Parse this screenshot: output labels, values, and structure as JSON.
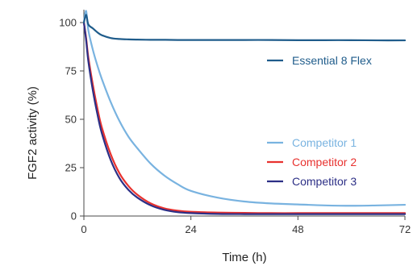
{
  "chart_data": {
    "type": "line",
    "title": "",
    "xlabel": "Time (h)",
    "ylabel": "FGF2 activity (%)",
    "xlim": [
      0,
      72
    ],
    "ylim": [
      0,
      105
    ],
    "x_ticks": [
      "0",
      "24",
      "48",
      "72"
    ],
    "y_ticks": [
      "0",
      "25",
      "50",
      "75",
      "100"
    ],
    "x": [
      0,
      0.5,
      1,
      2,
      3,
      4,
      6,
      8,
      10,
      12,
      15,
      18,
      21,
      24,
      30,
      36,
      42,
      48,
      54,
      60,
      66,
      72
    ],
    "series": [
      {
        "name": "Essential 8 Flex",
        "color": "#1f5c8b",
        "values": [
          100,
          104,
          99,
          97,
          95,
          93.5,
          92,
          91.5,
          91.3,
          91.2,
          91.1,
          91.1,
          91.0,
          91.0,
          91.0,
          91.0,
          91.0,
          90.9,
          90.9,
          90.9,
          90.8,
          90.8
        ]
      },
      {
        "name": "Competitor 1",
        "color": "#79b3e0",
        "values": [
          100,
          106,
          96,
          86,
          78,
          71,
          59,
          49,
          41,
          35,
          27,
          21,
          16.5,
          13,
          9.5,
          7.5,
          6.5,
          6,
          5.5,
          5.3,
          5.5,
          5.8
        ]
      },
      {
        "name": "Competitor 2",
        "color": "#e8322f",
        "values": [
          100,
          92,
          82,
          68,
          56,
          46,
          32,
          22,
          15.5,
          11,
          6.5,
          4,
          2.8,
          2.2,
          1.8,
          1.6,
          1.5,
          1.5,
          1.5,
          1.5,
          1.5,
          1.5
        ]
      },
      {
        "name": "Competitor 3",
        "color": "#2c2f86",
        "values": [
          100,
          91,
          80,
          65,
          53,
          43,
          29,
          19.5,
          13.5,
          9.5,
          5.5,
          3.2,
          2.0,
          1.5,
          1.1,
          1.0,
          1.0,
          1.0,
          1.0,
          1.0,
          1.0,
          1.0
        ]
      }
    ],
    "legend": {
      "groups": [
        {
          "entries": [
            "Essential 8 Flex"
          ]
        },
        {
          "entries": [
            "Competitor 1",
            "Competitor 2",
            "Competitor 3"
          ]
        }
      ],
      "placement": "right"
    },
    "grid": false
  }
}
